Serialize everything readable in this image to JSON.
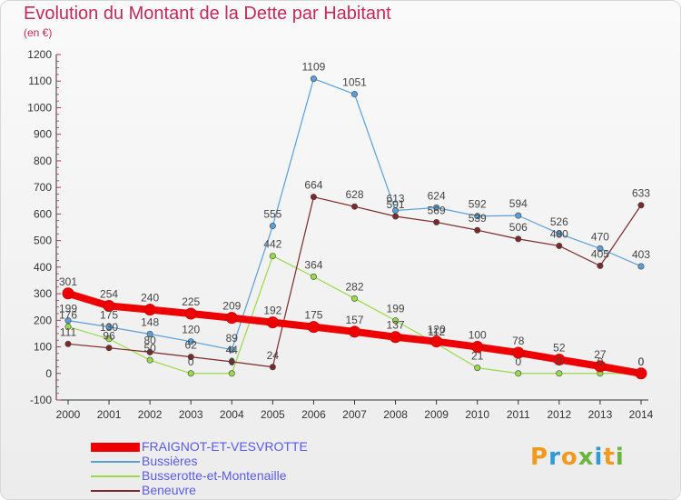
{
  "title": "Evolution du Montant de la Dette par Habitant",
  "subtitle": "(en €)",
  "logo": {
    "letters": [
      {
        "ch": "P",
        "color": "#f29a1e"
      },
      {
        "ch": "r",
        "color": "#2f9ad6"
      },
      {
        "ch": "o",
        "color": "#f29a1e"
      },
      {
        "ch": "x",
        "color": "#6cb33f"
      },
      {
        "ch": "i",
        "color": "#2f9ad6"
      },
      {
        "ch": "t",
        "color": "#f29a1e"
      },
      {
        "ch": "i",
        "color": "#6cb33f"
      }
    ]
  },
  "chart_data": {
    "type": "line",
    "title": "Evolution du Montant de la Dette par Habitant",
    "ylabel": "(en €)",
    "xlabel": "",
    "ylim": [
      -100,
      1200
    ],
    "yticks": [
      -100,
      0,
      100,
      200,
      300,
      400,
      500,
      600,
      700,
      800,
      900,
      1000,
      1100,
      1200
    ],
    "grid": false,
    "legend": "bottom-left",
    "categories": [
      "2000",
      "2001",
      "2002",
      "2003",
      "2004",
      "2005",
      "2006",
      "2007",
      "2008",
      "2009",
      "2010",
      "2011",
      "2012",
      "2013",
      "2014"
    ],
    "series": [
      {
        "name": "FRAIGNOT-ET-VESVROTTE",
        "color": "#ee0000",
        "width": 8,
        "values": [
          301,
          254,
          240,
          225,
          209,
          192,
          175,
          157,
          137,
          120,
          100,
          78,
          52,
          27,
          0
        ]
      },
      {
        "name": "Bussières",
        "color": "#5b9fd6",
        "width": 1.2,
        "values": [
          199,
          175,
          148,
          120,
          89,
          555,
          1109,
          1051,
          613,
          624,
          592,
          594,
          526,
          470,
          403
        ]
      },
      {
        "name": "Busserotte-et-Montenaille",
        "color": "#9ad94c",
        "width": 1.2,
        "values": [
          176,
          130,
          50,
          0,
          0,
          442,
          364,
          282,
          199,
          112,
          21,
          0,
          0,
          0,
          0
        ]
      },
      {
        "name": "Beneuvre",
        "color": "#7a2a2a",
        "width": 1.2,
        "values": [
          111,
          96,
          80,
          62,
          44,
          24,
          664,
          628,
          591,
          569,
          539,
          506,
          480,
          405,
          633
        ]
      }
    ]
  }
}
